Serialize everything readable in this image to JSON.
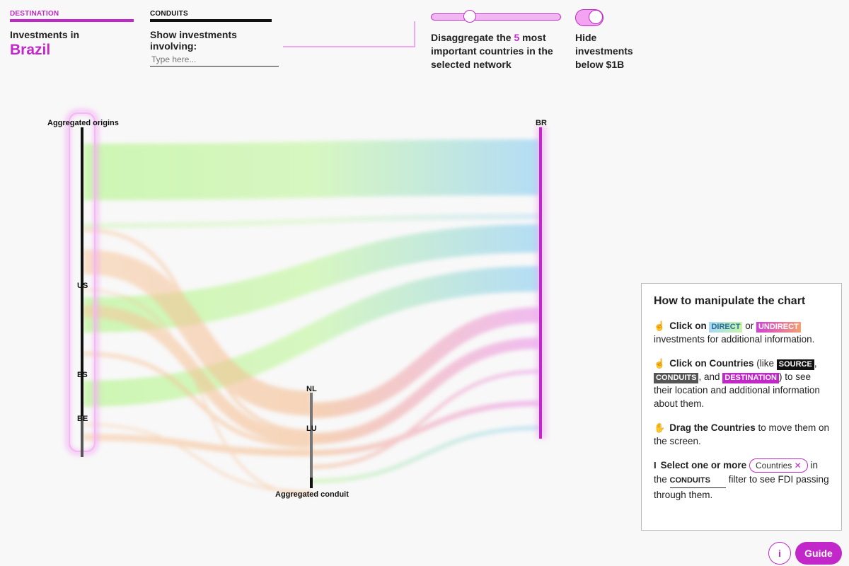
{
  "header": {
    "destination_tab": "DESTINATION",
    "destination_heading": "Investments in",
    "destination_value": "Brazil",
    "conduits_tab": "CONDUITS",
    "conduits_heading": "Show investments involving:",
    "conduits_placeholder": "Type here...",
    "slider_text_pre": "Disaggregate the",
    "slider_count": "5",
    "slider_text_post": "most important countries in the selected network",
    "slider_value_fraction": 0.28,
    "toggle_text": "Hide investments below $1B",
    "toggle_on": true
  },
  "chart": {
    "nodes": {
      "aggregated_origins": "Aggregated origins",
      "br": "BR",
      "us": "US",
      "es": "ES",
      "be": "BE",
      "nl": "NL",
      "lu": "LU",
      "aggregated_conduit": "Aggregated conduit"
    },
    "colors": {
      "direct_start": "#c6f5a8",
      "direct_end": "#a8d8f5",
      "indirect_start": "#f8c9a0",
      "indirect_end": "#ec9cec",
      "accent": "#c228c9"
    }
  },
  "guide": {
    "title": "How to manipulate the chart",
    "click_on": "Click on",
    "direct": "DIRECT",
    "or": "or",
    "undirect": "UNDIRECT",
    "line1_tail": "investments for additional information.",
    "click_countries": "Click on Countries",
    "like": "(like",
    "source": "SOURCE",
    "comma": ",",
    "conduits": "CONDUITS",
    "and": ", and",
    "destination": "DESTINATION",
    "line2_tail": ") to see their location and additional information about them.",
    "drag": "Drag the Countries",
    "line3_tail": "to move them on the screen.",
    "select": "Select one or more",
    "countries_pill": "Countries",
    "in": "in",
    "the": "the",
    "conduits_field": "CONDUITS",
    "line4_tail": "filter to see FDI passing through them."
  },
  "footer": {
    "info_label": "i",
    "guide_label": "Guide"
  }
}
